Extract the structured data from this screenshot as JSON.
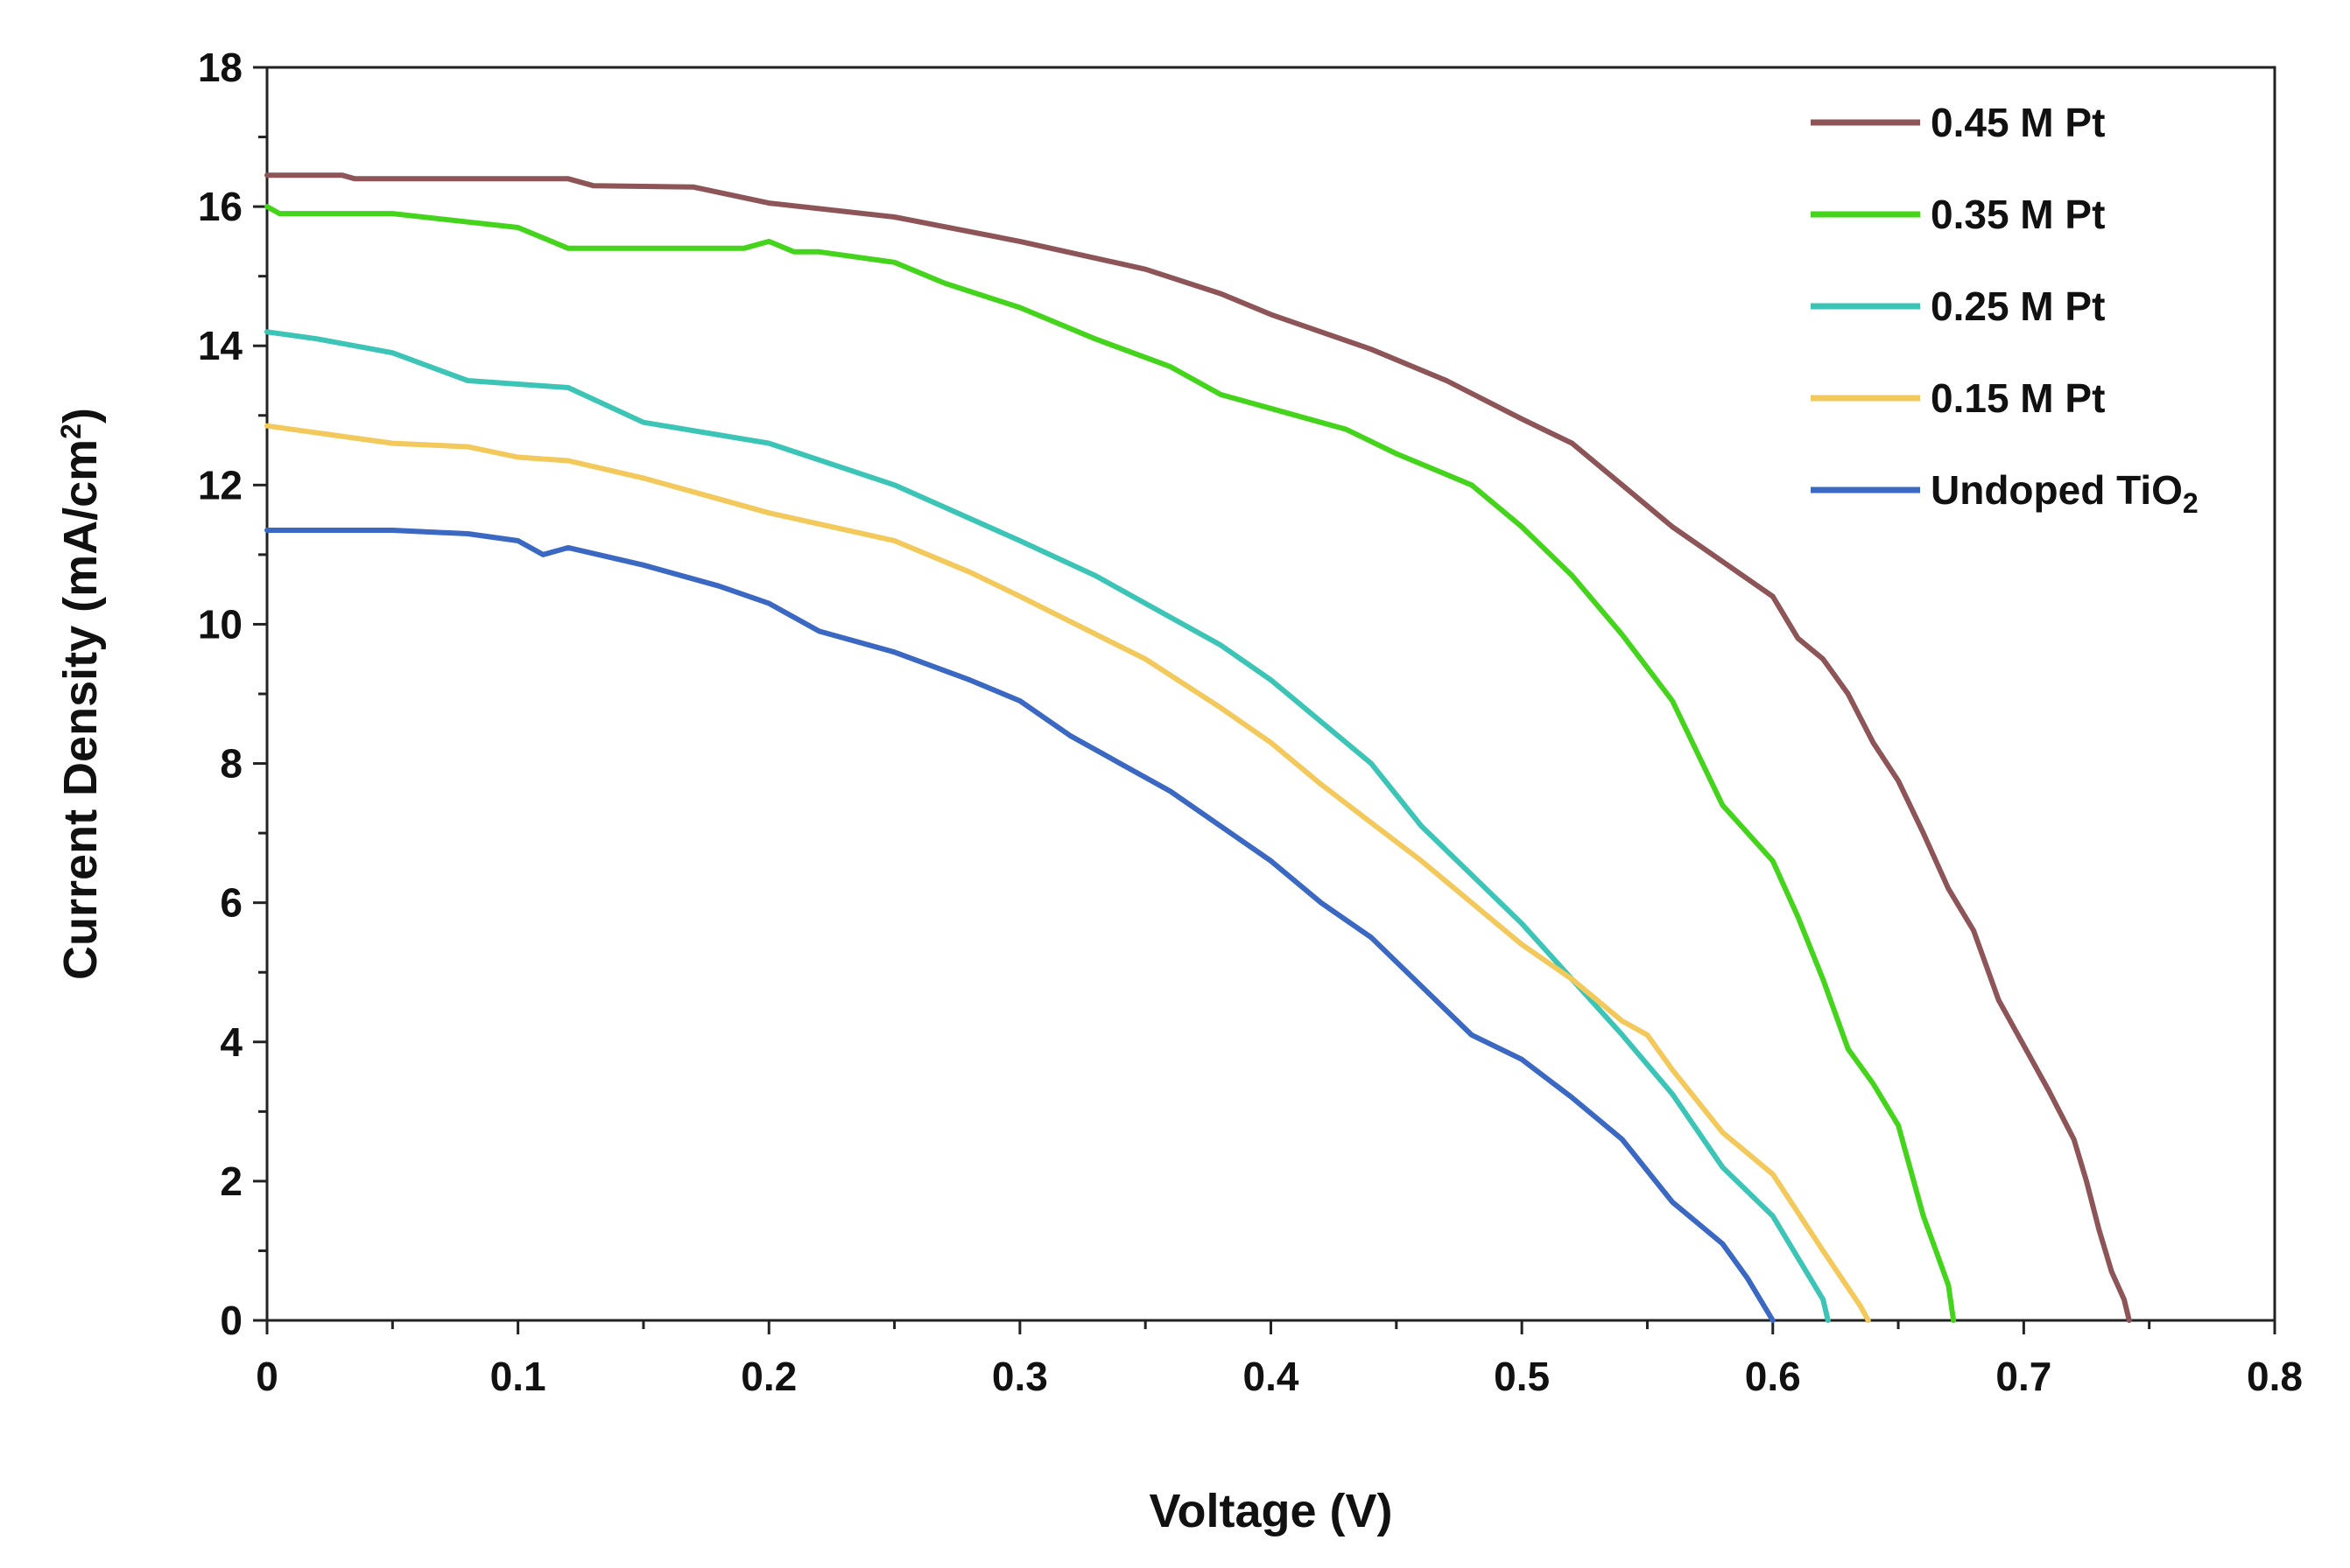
{
  "chart_data": {
    "type": "line",
    "title": "",
    "xlabel": "Voltage (V)",
    "ylabel": {
      "main": "Current Density (mA/cm",
      "sup": "2",
      "close": ")"
    },
    "xlim": [
      0,
      0.8
    ],
    "ylim": [
      0,
      18
    ],
    "xticks": [
      0,
      0.1,
      0.2,
      0.3,
      0.4,
      0.5,
      0.6,
      0.7,
      0.8
    ],
    "xtick_labels": [
      "0",
      "0.1",
      "0.2",
      "0.3",
      "0.4",
      "0.5",
      "0.6",
      "0.7",
      "0.8"
    ],
    "yticks": [
      0,
      2,
      4,
      6,
      8,
      10,
      12,
      14,
      16,
      18
    ],
    "ytick_labels": [
      "0",
      "2",
      "4",
      "6",
      "8",
      "10",
      "12",
      "14",
      "16",
      "18"
    ],
    "grid": false,
    "legend_position": "top-right",
    "series": [
      {
        "name": "0.45 M Pt",
        "color": "#8e5558",
        "points": [
          [
            0,
            16.45
          ],
          [
            0.03,
            16.45
          ],
          [
            0.035,
            16.4
          ],
          [
            0.1,
            16.4
          ],
          [
            0.12,
            16.4
          ],
          [
            0.13,
            16.3
          ],
          [
            0.17,
            16.28
          ],
          [
            0.2,
            16.05
          ],
          [
            0.25,
            15.85
          ],
          [
            0.3,
            15.5
          ],
          [
            0.35,
            15.1
          ],
          [
            0.38,
            14.75
          ],
          [
            0.4,
            14.45
          ],
          [
            0.42,
            14.2
          ],
          [
            0.44,
            13.95
          ],
          [
            0.47,
            13.5
          ],
          [
            0.5,
            12.95
          ],
          [
            0.52,
            12.6
          ],
          [
            0.54,
            12.0
          ],
          [
            0.56,
            11.4
          ],
          [
            0.58,
            10.9
          ],
          [
            0.6,
            10.4
          ],
          [
            0.61,
            9.8
          ],
          [
            0.62,
            9.5
          ],
          [
            0.63,
            9.0
          ],
          [
            0.64,
            8.3
          ],
          [
            0.65,
            7.75
          ],
          [
            0.66,
            7.0
          ],
          [
            0.67,
            6.2
          ],
          [
            0.68,
            5.6
          ],
          [
            0.69,
            4.6
          ],
          [
            0.7,
            3.95
          ],
          [
            0.71,
            3.3
          ],
          [
            0.72,
            2.6
          ],
          [
            0.725,
            2.0
          ],
          [
            0.73,
            1.3
          ],
          [
            0.735,
            0.7
          ],
          [
            0.74,
            0.3
          ],
          [
            0.742,
            0
          ]
        ]
      },
      {
        "name": "0.35 M Pt",
        "color": "#44d41c",
        "points": [
          [
            0,
            16.0
          ],
          [
            0.005,
            15.9
          ],
          [
            0.05,
            15.9
          ],
          [
            0.1,
            15.7
          ],
          [
            0.12,
            15.4
          ],
          [
            0.15,
            15.4
          ],
          [
            0.19,
            15.4
          ],
          [
            0.2,
            15.5
          ],
          [
            0.21,
            15.35
          ],
          [
            0.22,
            15.35
          ],
          [
            0.23,
            15.3
          ],
          [
            0.25,
            15.2
          ],
          [
            0.27,
            14.9
          ],
          [
            0.3,
            14.55
          ],
          [
            0.33,
            14.1
          ],
          [
            0.36,
            13.7
          ],
          [
            0.38,
            13.3
          ],
          [
            0.4,
            13.1
          ],
          [
            0.43,
            12.8
          ],
          [
            0.45,
            12.45
          ],
          [
            0.48,
            12.0
          ],
          [
            0.5,
            11.4
          ],
          [
            0.52,
            10.7
          ],
          [
            0.54,
            9.85
          ],
          [
            0.56,
            8.9
          ],
          [
            0.58,
            7.4
          ],
          [
            0.6,
            6.6
          ],
          [
            0.61,
            5.8
          ],
          [
            0.62,
            4.9
          ],
          [
            0.63,
            3.9
          ],
          [
            0.64,
            3.4
          ],
          [
            0.65,
            2.8
          ],
          [
            0.66,
            1.5
          ],
          [
            0.665,
            1.0
          ],
          [
            0.67,
            0.5
          ],
          [
            0.672,
            0
          ]
        ]
      },
      {
        "name": "0.25 M Pt",
        "color": "#3cc5b6",
        "points": [
          [
            0,
            14.2
          ],
          [
            0.02,
            14.1
          ],
          [
            0.05,
            13.9
          ],
          [
            0.08,
            13.5
          ],
          [
            0.1,
            13.45
          ],
          [
            0.12,
            13.4
          ],
          [
            0.15,
            12.9
          ],
          [
            0.2,
            12.6
          ],
          [
            0.25,
            12.0
          ],
          [
            0.3,
            11.2
          ],
          [
            0.33,
            10.7
          ],
          [
            0.35,
            10.3
          ],
          [
            0.38,
            9.7
          ],
          [
            0.4,
            9.2
          ],
          [
            0.42,
            8.6
          ],
          [
            0.44,
            8.0
          ],
          [
            0.46,
            7.1
          ],
          [
            0.48,
            6.4
          ],
          [
            0.5,
            5.7
          ],
          [
            0.52,
            4.9
          ],
          [
            0.54,
            4.1
          ],
          [
            0.56,
            3.25
          ],
          [
            0.58,
            2.2
          ],
          [
            0.6,
            1.5
          ],
          [
            0.61,
            0.9
          ],
          [
            0.62,
            0.3
          ],
          [
            0.622,
            0
          ]
        ]
      },
      {
        "name": "0.15 M Pt",
        "color": "#f3c95c",
        "points": [
          [
            0,
            12.85
          ],
          [
            0.02,
            12.75
          ],
          [
            0.05,
            12.6
          ],
          [
            0.08,
            12.55
          ],
          [
            0.1,
            12.4
          ],
          [
            0.12,
            12.35
          ],
          [
            0.15,
            12.1
          ],
          [
            0.2,
            11.6
          ],
          [
            0.25,
            11.2
          ],
          [
            0.28,
            10.75
          ],
          [
            0.3,
            10.4
          ],
          [
            0.35,
            9.5
          ],
          [
            0.38,
            8.8
          ],
          [
            0.4,
            8.3
          ],
          [
            0.42,
            7.7
          ],
          [
            0.44,
            7.15
          ],
          [
            0.46,
            6.6
          ],
          [
            0.48,
            6.0
          ],
          [
            0.5,
            5.4
          ],
          [
            0.52,
            4.9
          ],
          [
            0.54,
            4.3
          ],
          [
            0.55,
            4.1
          ],
          [
            0.56,
            3.6
          ],
          [
            0.58,
            2.7
          ],
          [
            0.6,
            2.1
          ],
          [
            0.62,
            1.0
          ],
          [
            0.635,
            0.2
          ],
          [
            0.638,
            0
          ]
        ]
      },
      {
        "name": "Undoped TiO",
        "name_sub": "2",
        "color": "#3a68c2",
        "points": [
          [
            0,
            11.35
          ],
          [
            0.05,
            11.35
          ],
          [
            0.08,
            11.3
          ],
          [
            0.1,
            11.2
          ],
          [
            0.11,
            11.0
          ],
          [
            0.12,
            11.1
          ],
          [
            0.15,
            10.85
          ],
          [
            0.18,
            10.55
          ],
          [
            0.2,
            10.3
          ],
          [
            0.22,
            9.9
          ],
          [
            0.25,
            9.6
          ],
          [
            0.28,
            9.2
          ],
          [
            0.3,
            8.9
          ],
          [
            0.32,
            8.4
          ],
          [
            0.34,
            8.0
          ],
          [
            0.36,
            7.6
          ],
          [
            0.38,
            7.1
          ],
          [
            0.4,
            6.6
          ],
          [
            0.42,
            6.0
          ],
          [
            0.44,
            5.5
          ],
          [
            0.46,
            4.8
          ],
          [
            0.48,
            4.1
          ],
          [
            0.5,
            3.75
          ],
          [
            0.52,
            3.2
          ],
          [
            0.54,
            2.6
          ],
          [
            0.56,
            1.7
          ],
          [
            0.58,
            1.1
          ],
          [
            0.59,
            0.6
          ],
          [
            0.6,
            0
          ]
        ]
      }
    ]
  }
}
